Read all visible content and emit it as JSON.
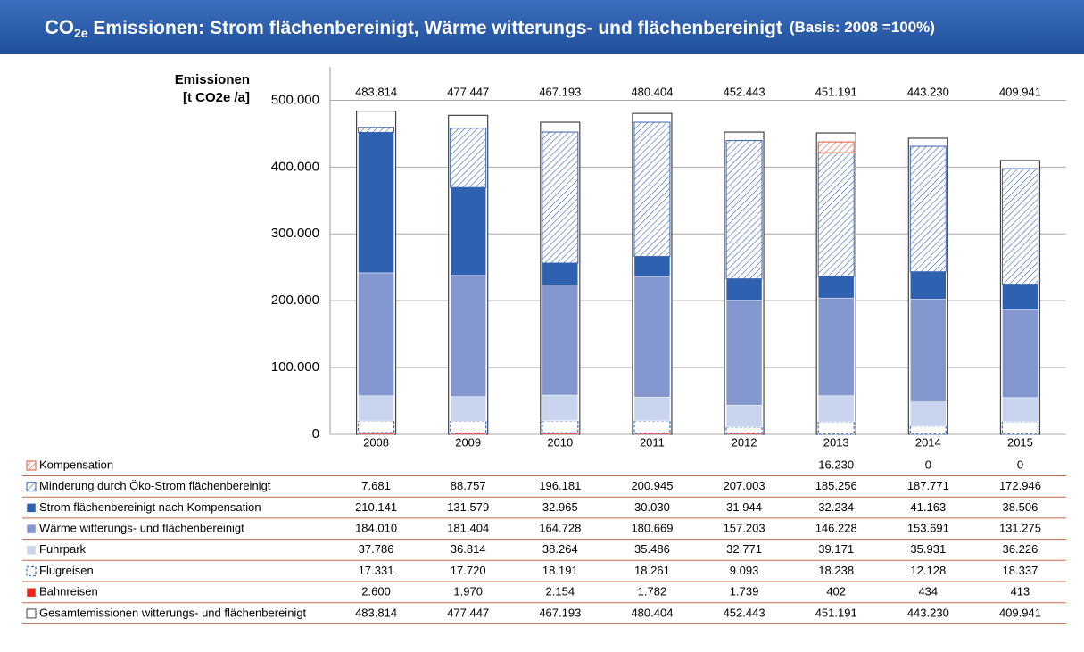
{
  "chart_data": {
    "type": "bar",
    "stacked": true,
    "title": {
      "main": "CO",
      "sub": "2e",
      "rest": " Emissionen: Strom flächenbereinigt, Wärme witterungs- und flächenbereinigt",
      "basis": "(Basis: 2008 =100%)"
    },
    "y_label": [
      "Emissionen",
      "[t CO2e /a]"
    ],
    "categories": [
      "2008",
      "2009",
      "2010",
      "2011",
      "2012",
      "2013",
      "2014",
      "2015"
    ],
    "ylim": [
      0,
      550000
    ],
    "yticks": [
      {
        "value": 0,
        "label": "0"
      },
      {
        "value": 100000,
        "label": "100.000"
      },
      {
        "value": 200000,
        "label": "200.000"
      },
      {
        "value": 300000,
        "label": "300.000"
      },
      {
        "value": 400000,
        "label": "400.000"
      },
      {
        "value": 500000,
        "label": "500.000"
      }
    ],
    "grid": true,
    "series": [
      {
        "name": "Kompensation",
        "color": "#e0553a",
        "fill": "hatched",
        "values": [
          null,
          null,
          null,
          null,
          null,
          16230,
          0,
          0
        ],
        "value_labels": [
          null,
          null,
          null,
          null,
          null,
          "16.230",
          "0",
          "0"
        ]
      },
      {
        "name": "Minderung durch Öko-Strom flächenbereinigt",
        "color": "#3a62ad",
        "fill": "hatched",
        "values": [
          7681,
          88757,
          196181,
          200945,
          207003,
          185256,
          187771,
          172946
        ],
        "value_labels": [
          "7.681",
          "88.757",
          "196.181",
          "200.945",
          "207.003",
          "185.256",
          "187.771",
          "172.946"
        ]
      },
      {
        "name": "Strom flächenbereinigt nach Kompensation",
        "color": "#2e62b0",
        "fill": "solid",
        "values": [
          210141,
          131579,
          32965,
          30030,
          31944,
          32234,
          41163,
          38506
        ],
        "value_labels": [
          "210.141",
          "131.579",
          "32.965",
          "30.030",
          "31.944",
          "32.234",
          "41.163",
          "38.506"
        ]
      },
      {
        "name": "Wärme witterungs- und flächenbereinigt",
        "color": "#8498cf",
        "fill": "solid",
        "values": [
          184010,
          181404,
          164728,
          180669,
          157203,
          146228,
          153691,
          131275
        ],
        "value_labels": [
          "184.010",
          "181.404",
          "164.728",
          "180.669",
          "157.203",
          "146.228",
          "153.691",
          "131.275"
        ]
      },
      {
        "name": "Fuhrpark",
        "color": "#c9d5ef",
        "fill": "solid",
        "values": [
          37786,
          36814,
          38264,
          35486,
          32771,
          39171,
          35931,
          36226
        ],
        "value_labels": [
          "37.786",
          "36.814",
          "38.264",
          "35.486",
          "32.771",
          "39.171",
          "35.931",
          "36.226"
        ]
      },
      {
        "name": "Flugreisen",
        "color": "#3a72c8",
        "fill": "dashed",
        "values": [
          17331,
          17720,
          18191,
          18261,
          9093,
          18238,
          12128,
          18337
        ],
        "value_labels": [
          "17.331",
          "17.720",
          "18.191",
          "18.261",
          "9.093",
          "18.238",
          "12.128",
          "18.337"
        ]
      },
      {
        "name": "Bahnreisen",
        "color": "#e8281e",
        "fill": "solid",
        "values": [
          2600,
          1970,
          2154,
          1782,
          1739,
          402,
          434,
          413
        ],
        "value_labels": [
          "2.600",
          "1.970",
          "2.154",
          "1.782",
          "1.739",
          "402",
          "434",
          "413"
        ]
      }
    ],
    "total": {
      "name": "Gesamtemissionen witterungs- und flächenbereinigt",
      "color": "#444444",
      "values": [
        483814,
        477447,
        467193,
        480404,
        452443,
        451191,
        443230,
        409941
      ],
      "value_labels": [
        "483.814",
        "477.447",
        "467.193",
        "480.404",
        "452.443",
        "451.191",
        "443.230",
        "409.941"
      ]
    }
  }
}
